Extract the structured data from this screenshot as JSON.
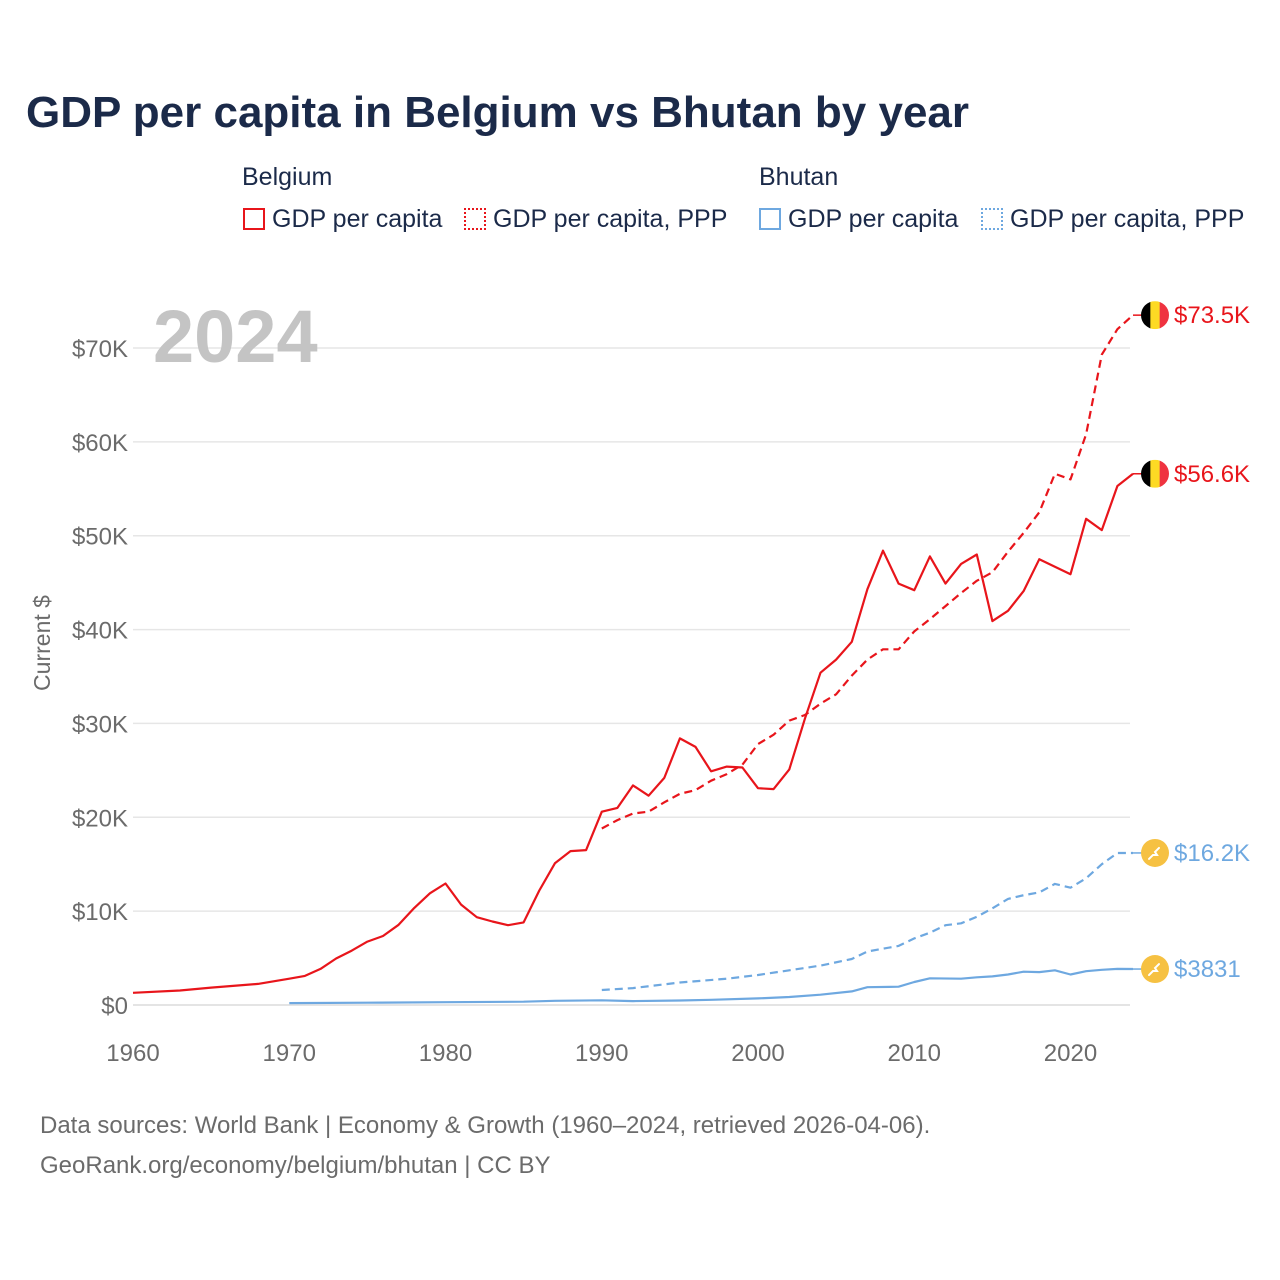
{
  "header": {
    "title": "GDP per capita in Belgium vs Bhutan by year"
  },
  "legend": {
    "groups": [
      {
        "country": "Belgium",
        "items": [
          "GDP per capita",
          "GDP per capita, PPP"
        ]
      },
      {
        "country": "Bhutan",
        "items": [
          "GDP per capita",
          "GDP per capita, PPP"
        ]
      }
    ]
  },
  "colors": {
    "belgium": "#e8151b",
    "bhutan": "#6ea8e0",
    "grid": "#e6e6e6",
    "axis_text": "#6b6b6b",
    "watermark": "#c4c4c4",
    "bhutan_flag": "#f6c142"
  },
  "chart_data": {
    "type": "line",
    "title": "GDP per capita in Belgium vs Bhutan by year",
    "year_watermark": "2024",
    "xlabel": "",
    "ylabel": "Current $",
    "xlim": [
      1960,
      2024
    ],
    "ylim": [
      0,
      75000
    ],
    "x_ticks": [
      "1960",
      "1970",
      "1980",
      "1990",
      "2000",
      "2010",
      "2020"
    ],
    "y_ticks": [
      {
        "value": 0,
        "label": "$0"
      },
      {
        "value": 10000,
        "label": "$10K"
      },
      {
        "value": 20000,
        "label": "$20K"
      },
      {
        "value": 30000,
        "label": "$30K"
      },
      {
        "value": 40000,
        "label": "$40K"
      },
      {
        "value": 50000,
        "label": "$50K"
      },
      {
        "value": 60000,
        "label": "$60K"
      },
      {
        "value": 70000,
        "label": "$70K"
      }
    ],
    "series": [
      {
        "name": "Belgium GDP per capita",
        "country": "Belgium",
        "style": "solid",
        "color": "#e8151b",
        "end_label": "$56.6K",
        "points": [
          [
            1960,
            1300
          ],
          [
            1963,
            1550
          ],
          [
            1965,
            1850
          ],
          [
            1968,
            2250
          ],
          [
            1970,
            2800
          ],
          [
            1971,
            3100
          ],
          [
            1972,
            3850
          ],
          [
            1973,
            4950
          ],
          [
            1974,
            5800
          ],
          [
            1975,
            6750
          ],
          [
            1976,
            7350
          ],
          [
            1977,
            8550
          ],
          [
            1978,
            10350
          ],
          [
            1979,
            11900
          ],
          [
            1980,
            12950
          ],
          [
            1981,
            10700
          ],
          [
            1982,
            9350
          ],
          [
            1983,
            8900
          ],
          [
            1984,
            8500
          ],
          [
            1985,
            8800
          ],
          [
            1986,
            12200
          ],
          [
            1987,
            15100
          ],
          [
            1988,
            16400
          ],
          [
            1989,
            16500
          ],
          [
            1990,
            20600
          ],
          [
            1991,
            21000
          ],
          [
            1992,
            23400
          ],
          [
            1993,
            22300
          ],
          [
            1994,
            24200
          ],
          [
            1995,
            28400
          ],
          [
            1996,
            27500
          ],
          [
            1997,
            24900
          ],
          [
            1998,
            25400
          ],
          [
            1999,
            25300
          ],
          [
            2000,
            23100
          ],
          [
            2001,
            23000
          ],
          [
            2002,
            25100
          ],
          [
            2003,
            30500
          ],
          [
            2004,
            35400
          ],
          [
            2005,
            36800
          ],
          [
            2006,
            38700
          ],
          [
            2007,
            44300
          ],
          [
            2008,
            48400
          ],
          [
            2009,
            44900
          ],
          [
            2010,
            44200
          ],
          [
            2011,
            47800
          ],
          [
            2012,
            44900
          ],
          [
            2013,
            47000
          ],
          [
            2014,
            48000
          ],
          [
            2015,
            40900
          ],
          [
            2016,
            42000
          ],
          [
            2017,
            44100
          ],
          [
            2018,
            47500
          ],
          [
            2019,
            46700
          ],
          [
            2020,
            45900
          ],
          [
            2021,
            51800
          ],
          [
            2022,
            50600
          ],
          [
            2023,
            55300
          ],
          [
            2024,
            56600
          ]
        ]
      },
      {
        "name": "Belgium GDP per capita, PPP",
        "country": "Belgium",
        "style": "dashed",
        "color": "#e8151b",
        "end_label": "$73.5K",
        "points": [
          [
            1990,
            18800
          ],
          [
            1991,
            19700
          ],
          [
            1992,
            20400
          ],
          [
            1993,
            20600
          ],
          [
            1994,
            21600
          ],
          [
            1995,
            22500
          ],
          [
            1996,
            22900
          ],
          [
            1997,
            23900
          ],
          [
            1998,
            24600
          ],
          [
            1999,
            25600
          ],
          [
            2000,
            27800
          ],
          [
            2001,
            28800
          ],
          [
            2002,
            30300
          ],
          [
            2003,
            30900
          ],
          [
            2004,
            32100
          ],
          [
            2005,
            33100
          ],
          [
            2006,
            35100
          ],
          [
            2007,
            36800
          ],
          [
            2008,
            37900
          ],
          [
            2009,
            37900
          ],
          [
            2010,
            39800
          ],
          [
            2011,
            41100
          ],
          [
            2012,
            42500
          ],
          [
            2013,
            43900
          ],
          [
            2014,
            45200
          ],
          [
            2015,
            46100
          ],
          [
            2016,
            48300
          ],
          [
            2017,
            50300
          ],
          [
            2018,
            52500
          ],
          [
            2019,
            56600
          ],
          [
            2020,
            56000
          ],
          [
            2021,
            60800
          ],
          [
            2022,
            69300
          ],
          [
            2023,
            72000
          ],
          [
            2024,
            73500
          ]
        ]
      },
      {
        "name": "Bhutan GDP per capita",
        "country": "Bhutan",
        "style": "solid",
        "color": "#6ea8e0",
        "end_label": "$3831",
        "points": [
          [
            1970,
            200
          ],
          [
            1975,
            250
          ],
          [
            1980,
            300
          ],
          [
            1985,
            350
          ],
          [
            1987,
            450
          ],
          [
            1990,
            500
          ],
          [
            1992,
            420
          ],
          [
            1995,
            480
          ],
          [
            1997,
            550
          ],
          [
            2000,
            700
          ],
          [
            2002,
            850
          ],
          [
            2004,
            1100
          ],
          [
            2006,
            1450
          ],
          [
            2007,
            1900
          ],
          [
            2009,
            1950
          ],
          [
            2010,
            2450
          ],
          [
            2011,
            2850
          ],
          [
            2013,
            2800
          ],
          [
            2014,
            2950
          ],
          [
            2015,
            3050
          ],
          [
            2016,
            3250
          ],
          [
            2017,
            3550
          ],
          [
            2018,
            3500
          ],
          [
            2019,
            3700
          ],
          [
            2020,
            3250
          ],
          [
            2021,
            3600
          ],
          [
            2022,
            3750
          ],
          [
            2023,
            3850
          ],
          [
            2024,
            3831
          ]
        ]
      },
      {
        "name": "Bhutan GDP per capita, PPP",
        "country": "Bhutan",
        "style": "dashed",
        "color": "#6ea8e0",
        "end_label": "$16.2K",
        "points": [
          [
            1990,
            1600
          ],
          [
            1992,
            1800
          ],
          [
            1995,
            2400
          ],
          [
            1998,
            2800
          ],
          [
            2000,
            3200
          ],
          [
            2002,
            3700
          ],
          [
            2004,
            4200
          ],
          [
            2006,
            4900
          ],
          [
            2007,
            5700
          ],
          [
            2009,
            6300
          ],
          [
            2010,
            7100
          ],
          [
            2011,
            7700
          ],
          [
            2012,
            8500
          ],
          [
            2013,
            8700
          ],
          [
            2014,
            9400
          ],
          [
            2015,
            10300
          ],
          [
            2016,
            11300
          ],
          [
            2017,
            11700
          ],
          [
            2018,
            12000
          ],
          [
            2019,
            12900
          ],
          [
            2020,
            12500
          ],
          [
            2021,
            13500
          ],
          [
            2022,
            15000
          ],
          [
            2023,
            16200
          ],
          [
            2024,
            16200
          ]
        ]
      }
    ]
  },
  "footer": {
    "source_line": "Data sources: World Bank | Economy & Growth (1960–2024, retrieved 2026-04-06).",
    "url_line": "GeoRank.org/economy/belgium/bhutan | CC BY"
  }
}
